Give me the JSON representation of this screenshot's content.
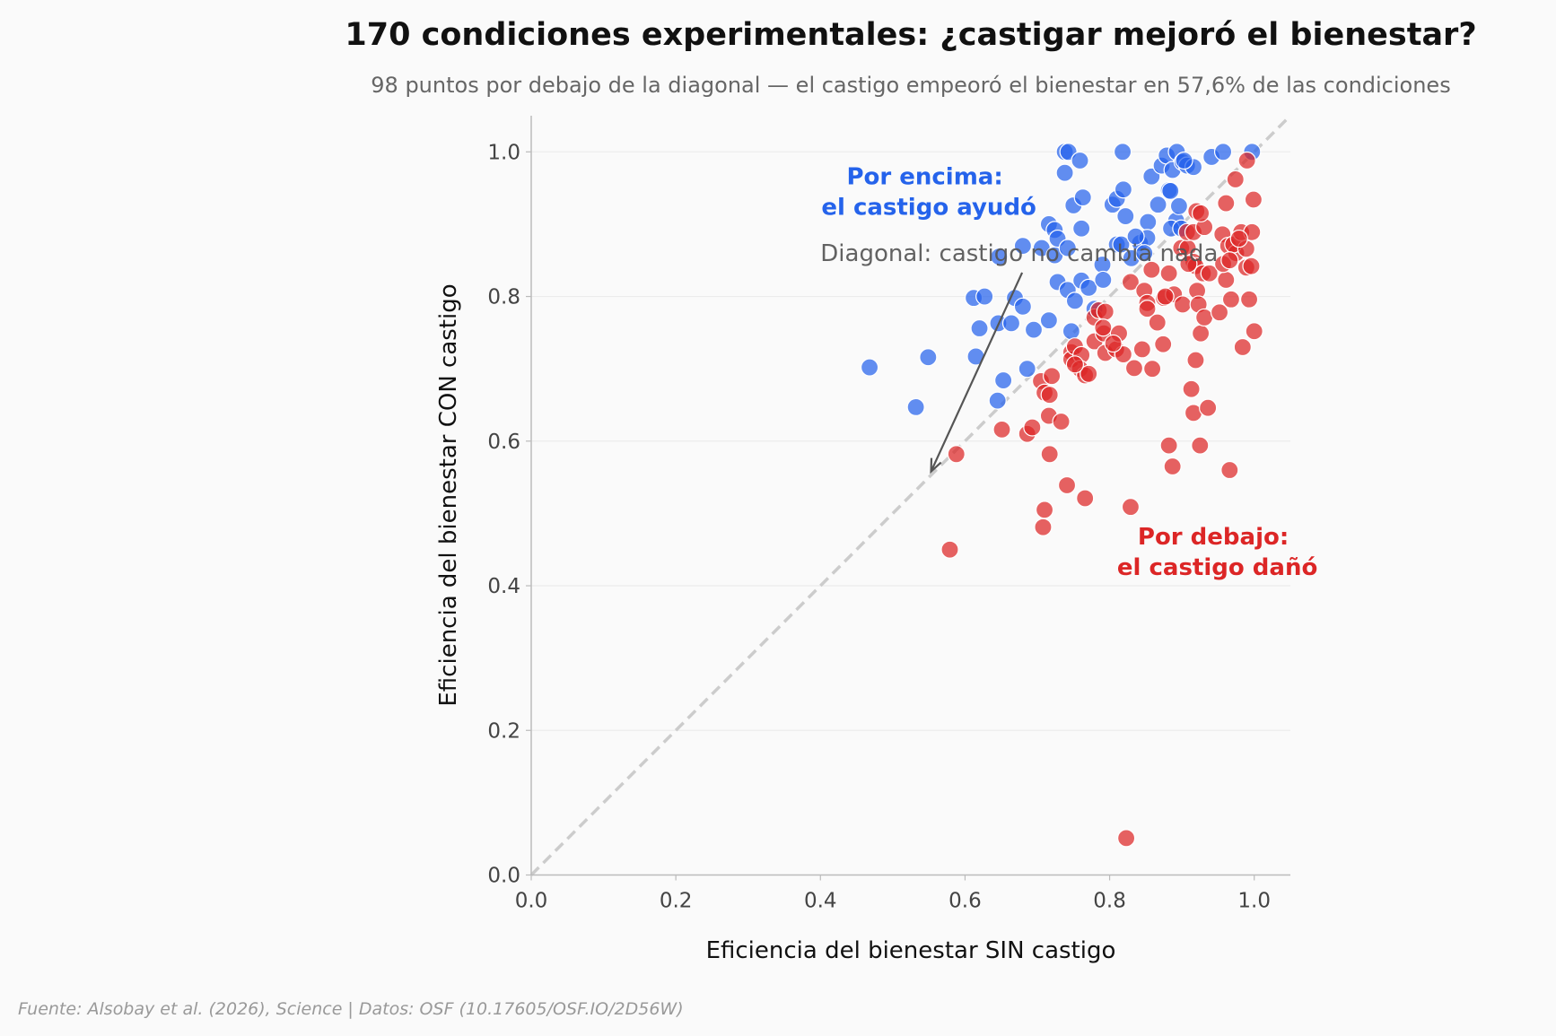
{
  "chart_data": {
    "type": "scatter",
    "title": "170 condiciones experimentales: ¿castigar mejoró el bienestar?",
    "subtitle": "98 puntos por debajo de la diagonal — el castigo empeoró el bienestar en 57,6% de las condiciones",
    "xlabel": "Eficiencia del bienestar SIN castigo",
    "ylabel": "Eficiencia del bienestar CON castigo",
    "xlim": [
      0,
      1.05
    ],
    "ylim": [
      0,
      1.05
    ],
    "xticks": [
      "0.0",
      "0.2",
      "0.4",
      "0.6",
      "0.8",
      "1.0"
    ],
    "yticks": [
      "0.0",
      "0.2",
      "0.4",
      "0.6",
      "0.8",
      "1.0"
    ],
    "grid": "horizontal",
    "diagonal": "y = x (dashed)",
    "colors": {
      "above": "#2563eb",
      "below": "#dc2626",
      "diagonal": "#cccccc",
      "background": "#fafafa"
    },
    "annotations": {
      "above": [
        "Por encima:",
        "el castigo ayudó"
      ],
      "below": [
        "Por debajo:",
        "el castigo dañó"
      ],
      "diagonal": "Diagonal: castigo no cambia nada",
      "diagonal_arrow": {
        "from": [
          0.679,
          0.833
        ],
        "to": [
          0.553,
          0.558
        ]
      },
      "above_pos": [
        0.55,
        0.95
      ],
      "below_pos": [
        0.949,
        0.452
      ],
      "diagonal_pos": [
        0.4,
        0.86
      ]
    },
    "source": "Fuente: Alsobay et al. (2026), Science | Datos: OSF (10.17605/OSF.IO/2D56W)",
    "series": [
      {
        "group": "above",
        "points": [
          [
            0.468,
            0.702
          ],
          [
            0.532,
            0.647
          ],
          [
            0.549,
            0.716
          ],
          [
            0.612,
            0.798
          ],
          [
            0.627,
            0.8
          ],
          [
            0.615,
            0.717
          ],
          [
            0.62,
            0.756
          ],
          [
            0.647,
            0.855
          ],
          [
            0.646,
            0.763
          ],
          [
            0.664,
            0.763
          ],
          [
            0.653,
            0.684
          ],
          [
            0.645,
            0.656
          ],
          [
            0.669,
            0.798
          ],
          [
            0.68,
            0.786
          ],
          [
            0.68,
            0.87
          ],
          [
            0.686,
            0.7
          ],
          [
            0.695,
            0.754
          ],
          [
            0.706,
            0.867
          ],
          [
            0.716,
            0.9
          ],
          [
            0.724,
            0.892
          ],
          [
            0.716,
            0.767
          ],
          [
            0.724,
            0.857
          ],
          [
            0.728,
            0.88
          ],
          [
            0.728,
            0.82
          ],
          [
            0.738,
            1.0
          ],
          [
            0.743,
            1.0
          ],
          [
            0.738,
            0.971
          ],
          [
            0.742,
            0.867
          ],
          [
            0.742,
            0.809
          ],
          [
            0.75,
            0.926
          ],
          [
            0.747,
            0.752
          ],
          [
            0.752,
            0.794
          ],
          [
            0.759,
            0.988
          ],
          [
            0.761,
            0.894
          ],
          [
            0.763,
            0.937
          ],
          [
            0.761,
            0.822
          ],
          [
            0.771,
            0.812
          ],
          [
            0.779,
            0.783
          ],
          [
            0.79,
            0.844
          ],
          [
            0.791,
            0.823
          ],
          [
            0.804,
            0.927
          ],
          [
            0.81,
            0.935
          ],
          [
            0.818,
            1.0
          ],
          [
            0.819,
            0.948
          ],
          [
            0.822,
            0.911
          ],
          [
            0.81,
            0.872
          ],
          [
            0.816,
            0.872
          ],
          [
            0.83,
            0.853
          ],
          [
            0.842,
            0.874
          ],
          [
            0.853,
            0.903
          ],
          [
            0.852,
            0.881
          ],
          [
            0.848,
            0.86
          ],
          [
            0.858,
            0.966
          ],
          [
            0.867,
            0.927
          ],
          [
            0.872,
            0.981
          ],
          [
            0.879,
            0.995
          ],
          [
            0.882,
            0.947
          ],
          [
            0.887,
            0.975
          ],
          [
            0.893,
            1.0
          ],
          [
            0.892,
            0.905
          ],
          [
            0.896,
            0.925
          ],
          [
            0.885,
            0.894
          ],
          [
            0.901,
            0.986
          ],
          [
            0.907,
            0.981
          ],
          [
            0.916,
            0.979
          ],
          [
            0.941,
            0.993
          ],
          [
            0.957,
            1.0
          ],
          [
            0.997,
            1.0
          ],
          [
            0.899,
            0.894
          ],
          [
            0.836,
            0.883
          ],
          [
            0.884,
            0.946
          ],
          [
            0.903,
            0.988
          ]
        ]
      },
      {
        "group": "below",
        "points": [
          [
            0.579,
            0.45
          ],
          [
            0.588,
            0.582
          ],
          [
            0.651,
            0.616
          ],
          [
            0.686,
            0.61
          ],
          [
            0.693,
            0.619
          ],
          [
            0.705,
            0.683
          ],
          [
            0.708,
            0.481
          ],
          [
            0.71,
            0.505
          ],
          [
            0.71,
            0.667
          ],
          [
            0.717,
            0.664
          ],
          [
            0.716,
            0.635
          ],
          [
            0.717,
            0.582
          ],
          [
            0.72,
            0.69
          ],
          [
            0.733,
            0.627
          ],
          [
            0.741,
            0.539
          ],
          [
            0.747,
            0.723
          ],
          [
            0.747,
            0.713
          ],
          [
            0.752,
            0.731
          ],
          [
            0.761,
            0.719
          ],
          [
            0.759,
            0.7
          ],
          [
            0.766,
            0.691
          ],
          [
            0.771,
            0.693
          ],
          [
            0.766,
            0.521
          ],
          [
            0.779,
            0.738
          ],
          [
            0.779,
            0.771
          ],
          [
            0.785,
            0.781
          ],
          [
            0.794,
            0.779
          ],
          [
            0.792,
            0.749
          ],
          [
            0.791,
            0.757
          ],
          [
            0.794,
            0.722
          ],
          [
            0.809,
            0.727
          ],
          [
            0.813,
            0.749
          ],
          [
            0.819,
            0.72
          ],
          [
            0.829,
            0.509
          ],
          [
            0.829,
            0.82
          ],
          [
            0.834,
            0.701
          ],
          [
            0.845,
            0.727
          ],
          [
            0.848,
            0.808
          ],
          [
            0.852,
            0.791
          ],
          [
            0.852,
            0.783
          ],
          [
            0.858,
            0.837
          ],
          [
            0.859,
            0.7
          ],
          [
            0.866,
            0.764
          ],
          [
            0.874,
            0.734
          ],
          [
            0.875,
            0.798
          ],
          [
            0.882,
            0.832
          ],
          [
            0.882,
            0.594
          ],
          [
            0.889,
            0.803
          ],
          [
            0.887,
            0.565
          ],
          [
            0.901,
            0.789
          ],
          [
            0.899,
            0.867
          ],
          [
            0.908,
            0.867
          ],
          [
            0.907,
            0.889
          ],
          [
            0.916,
            0.889
          ],
          [
            0.916,
            0.848
          ],
          [
            0.919,
            0.842
          ],
          [
            0.913,
            0.672
          ],
          [
            0.916,
            0.639
          ],
          [
            0.919,
            0.712
          ],
          [
            0.921,
            0.808
          ],
          [
            0.923,
            0.789
          ],
          [
            0.925,
            0.594
          ],
          [
            0.926,
            0.749
          ],
          [
            0.929,
            0.832
          ],
          [
            0.931,
            0.771
          ],
          [
            0.931,
            0.896
          ],
          [
            0.936,
            0.646
          ],
          [
            0.938,
            0.832
          ],
          [
            0.92,
            0.918
          ],
          [
            0.926,
            0.915
          ],
          [
            0.952,
            0.778
          ],
          [
            0.956,
            0.886
          ],
          [
            0.961,
            0.929
          ],
          [
            0.961,
            0.823
          ],
          [
            0.957,
            0.845
          ],
          [
            0.964,
            0.87
          ],
          [
            0.966,
            0.56
          ],
          [
            0.968,
            0.796
          ],
          [
            0.974,
            0.962
          ],
          [
            0.975,
            0.86
          ],
          [
            0.971,
            0.872
          ],
          [
            0.982,
            0.889
          ],
          [
            0.984,
            0.73
          ],
          [
            0.989,
            0.866
          ],
          [
            0.99,
            0.988
          ],
          [
            0.989,
            0.84
          ],
          [
            0.993,
            0.796
          ],
          [
            0.996,
            0.842
          ],
          [
            0.999,
            0.934
          ],
          [
            0.997,
            0.889
          ],
          [
            1.0,
            0.752
          ],
          [
            0.823,
            0.051
          ],
          [
            0.966,
            0.85
          ],
          [
            0.979,
            0.88
          ],
          [
            0.805,
            0.735
          ],
          [
            0.909,
            0.845
          ],
          [
            0.752,
            0.706
          ],
          [
            0.877,
            0.8
          ]
        ]
      }
    ]
  }
}
